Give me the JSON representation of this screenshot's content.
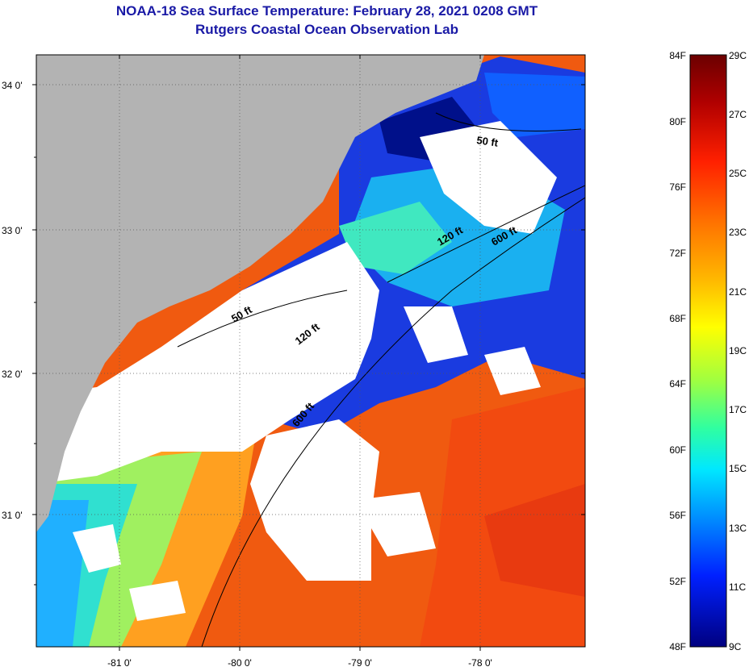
{
  "title": "NOAA-18 Sea Surface Temperature:  February 28, 2021 0208 GMT",
  "subtitle": "Rutgers Coastal Ocean Observation Lab",
  "latitude_labels": [
    "34 0'",
    "33 0'",
    "32 0'",
    "31 0'"
  ],
  "longitude_labels": [
    "-81 0'",
    "-80 0'",
    "-79 0'",
    "-78 0'"
  ],
  "contour_labels": [
    "50 ft",
    "120 ft",
    "600 ft",
    "50 ft",
    "120 ft",
    "600 ft"
  ],
  "colorbar": {
    "fahrenheit_labels": [
      "84F",
      "80F",
      "76F",
      "72F",
      "68F",
      "64F",
      "60F",
      "56F",
      "52F",
      "48F"
    ],
    "celsius_labels": [
      "29C",
      "27C",
      "25C",
      "23C",
      "21C",
      "19C",
      "17C",
      "15C",
      "13C",
      "11C",
      "9C"
    ]
  },
  "colors": {
    "land": "#b3b3b3",
    "cloud": "#ffffff",
    "title": "#1a1aa6"
  }
}
